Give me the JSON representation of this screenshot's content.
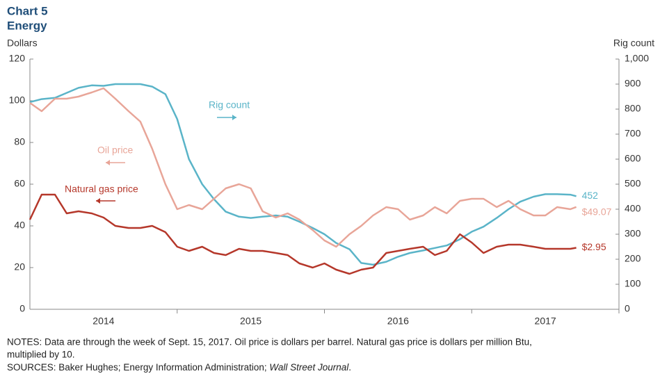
{
  "chart_data": {
    "type": "line",
    "title": "Chart 5",
    "subtitle": "Energy",
    "y_label": "Dollars",
    "y2_label": "Rig count",
    "notes": [
      "NOTES: Data are through  the week of Sept. 15, 2017. Oil price is dollars per barrel. Natural gas price is dollars per million Btu,",
      "multiplied by 10."
    ],
    "sources": [
      {
        "text": "SOURCES: Baker Hughes; Energy Information  Administration; ",
        "italic": false
      },
      {
        "text": "Wall Street Journal",
        "italic": true
      },
      {
        "text": ".",
        "italic": false
      }
    ],
    "x": [
      2014.0,
      2014.08,
      2014.17,
      2014.25,
      2014.33,
      2014.42,
      2014.5,
      2014.58,
      2014.67,
      2014.75,
      2014.83,
      2014.92,
      2015.0,
      2015.08,
      2015.17,
      2015.25,
      2015.33,
      2015.42,
      2015.5,
      2015.58,
      2015.67,
      2015.75,
      2015.83,
      2015.92,
      2016.0,
      2016.08,
      2016.17,
      2016.25,
      2016.33,
      2016.42,
      2016.5,
      2016.58,
      2016.67,
      2016.75,
      2016.83,
      2016.92,
      2017.0,
      2017.08,
      2017.17,
      2017.25,
      2017.33,
      2017.42,
      2017.5,
      2017.58,
      2017.67,
      2017.71
    ],
    "xlim": [
      2014,
      2018
    ],
    "xticks": [
      {
        "value": 2014,
        "label": "2014"
      },
      {
        "value": 2015,
        "label": "2015"
      },
      {
        "value": 2016,
        "label": "2016"
      },
      {
        "value": 2017,
        "label": "2017"
      }
    ],
    "ylim": [
      0,
      120
    ],
    "yticks": [
      0,
      20,
      40,
      60,
      80,
      100,
      120
    ],
    "y2lim": [
      0,
      1000
    ],
    "y2ticks": [
      0,
      100,
      200,
      300,
      400,
      500,
      600,
      700,
      800,
      900,
      {
        "value": 1000,
        "label": "1,000"
      }
    ],
    "grid": false,
    "series": [
      {
        "name": "Rig count",
        "color": "#5ab4c8",
        "axis": "y2",
        "values": [
          828,
          840,
          845,
          865,
          885,
          895,
          893,
          900,
          900,
          900,
          890,
          860,
          760,
          600,
          500,
          440,
          390,
          370,
          365,
          370,
          375,
          370,
          350,
          325,
          300,
          265,
          240,
          185,
          178,
          190,
          210,
          225,
          235,
          245,
          255,
          280,
          310,
          330,
          365,
          400,
          430,
          450,
          460,
          460,
          458,
          452
        ]
      },
      {
        "name": "Oil price",
        "color": "#e8a598",
        "values": [
          99,
          95,
          101,
          101,
          102,
          104,
          106,
          101,
          95,
          90,
          77,
          60,
          48,
          50,
          48,
          53,
          58,
          60,
          58,
          47,
          44,
          46,
          43,
          38,
          33,
          30,
          36,
          40,
          45,
          49,
          48,
          43,
          45,
          49,
          46,
          52,
          53,
          53,
          49,
          52,
          48,
          45,
          45,
          49,
          48,
          49.07
        ],
        "value_labels": [
          null,
          null,
          null,
          null,
          null,
          null,
          null,
          null,
          null,
          null,
          null,
          null,
          null,
          null,
          null,
          null,
          null,
          null,
          null,
          null,
          null,
          null,
          null,
          null,
          null,
          null,
          null,
          null,
          null,
          null,
          null,
          null,
          null,
          null,
          null,
          null,
          null,
          null,
          null,
          null,
          null,
          null,
          null,
          null,
          null,
          "$49.07"
        ]
      },
      {
        "name": "Natural gas price",
        "color": "#b5372a",
        "values": [
          43,
          55,
          55,
          46,
          47,
          46,
          44,
          40,
          39,
          39,
          40,
          37,
          30,
          28,
          30,
          27,
          26,
          29,
          28,
          28,
          27,
          26,
          22,
          20,
          22,
          19,
          17,
          19,
          20,
          27,
          28,
          29,
          30,
          26,
          28,
          36,
          32,
          27,
          30,
          31,
          31,
          30,
          29,
          29,
          29,
          29.5
        ],
        "value_labels": [
          null,
          null,
          null,
          null,
          null,
          null,
          null,
          null,
          null,
          null,
          null,
          null,
          null,
          null,
          null,
          null,
          null,
          null,
          null,
          null,
          null,
          null,
          null,
          null,
          null,
          null,
          null,
          null,
          null,
          null,
          null,
          null,
          null,
          null,
          null,
          null,
          null,
          null,
          null,
          null,
          null,
          null,
          null,
          null,
          null,
          "$2.95"
        ]
      }
    ]
  }
}
